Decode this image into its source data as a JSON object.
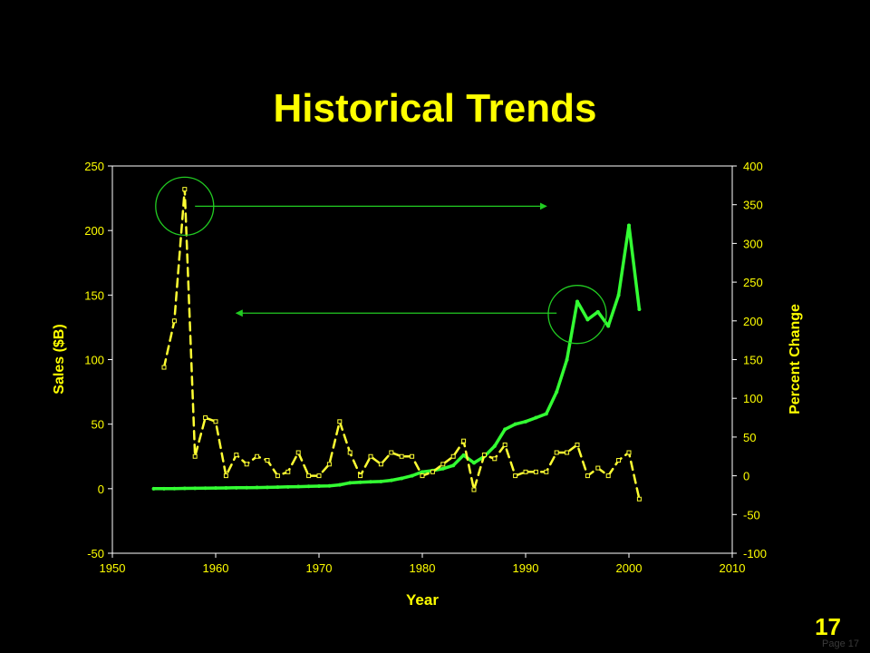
{
  "slide": {
    "title": "Historical Trends",
    "page_number": "17",
    "footer": "Page 17"
  },
  "colors": {
    "background": "#000000",
    "text": "#ffff00",
    "sales_line": "#33ff33",
    "percent_line": "#ffff33",
    "annotation": "#22cc22"
  },
  "chart_data": {
    "type": "line",
    "title": "",
    "xlabel": "Year",
    "ylabel": "Sales ($B)",
    "y2label": "Percent Change",
    "xlim": [
      1950,
      2010
    ],
    "ylim": [
      -50,
      250
    ],
    "y2lim": [
      -100,
      400
    ],
    "x_ticks": [
      "1950",
      "1960",
      "1970",
      "1980",
      "1990",
      "2000",
      "2010"
    ],
    "y_ticks": [
      "-50",
      "0",
      "50",
      "100",
      "150",
      "200",
      "250"
    ],
    "y2_ticks": [
      "-100",
      "-50",
      "0",
      "50",
      "100",
      "150",
      "200",
      "250",
      "300",
      "350",
      "400"
    ],
    "grid": false,
    "series": [
      {
        "axis": "left",
        "style": "solid",
        "x": [
          1954,
          1955,
          1956,
          1957,
          1958,
          1959,
          1960,
          1961,
          1962,
          1963,
          1964,
          1965,
          1966,
          1967,
          1968,
          1969,
          1970,
          1971,
          1972,
          1973,
          1974,
          1975,
          1976,
          1977,
          1978,
          1979,
          1980,
          1981,
          1982,
          1983,
          1984,
          1985,
          1986,
          1987,
          1988,
          1989,
          1990,
          1991,
          1992,
          1993,
          1994,
          1995,
          1996,
          1997,
          1998,
          1999,
          2000,
          2001
        ],
        "values": [
          0.0,
          0.0,
          0.1,
          0.2,
          0.3,
          0.4,
          0.5,
          0.6,
          0.7,
          0.8,
          0.9,
          1.0,
          1.2,
          1.4,
          1.6,
          1.8,
          2.0,
          2.2,
          3.0,
          4.5,
          5.0,
          5.3,
          5.6,
          6.5,
          8.0,
          10.0,
          13.0,
          14.0,
          15.5,
          18.0,
          26.0,
          20.0,
          25.0,
          33.0,
          46.0,
          50.0,
          52.0,
          55.0,
          58.0,
          75.0,
          100.0,
          145.0,
          131.0,
          137.0,
          126.0,
          150.0,
          204.0,
          139.0
        ]
      },
      {
        "axis": "right",
        "style": "dashed",
        "x": [
          1955,
          1956,
          1957,
          1958,
          1959,
          1960,
          1961,
          1962,
          1963,
          1964,
          1965,
          1966,
          1967,
          1968,
          1969,
          1970,
          1971,
          1972,
          1973,
          1974,
          1975,
          1976,
          1977,
          1978,
          1979,
          1980,
          1981,
          1982,
          1983,
          1984,
          1985,
          1986,
          1987,
          1988,
          1989,
          1990,
          1991,
          1992,
          1993,
          1994,
          1995,
          1996,
          1997,
          1998,
          1999,
          2000,
          2001
        ],
        "values": [
          140,
          200,
          370,
          25,
          75,
          70,
          0,
          27,
          15,
          25,
          20,
          0,
          5,
          30,
          0,
          0,
          15,
          70,
          30,
          0,
          25,
          15,
          30,
          25,
          25,
          0,
          5,
          15,
          25,
          45,
          -18,
          27,
          22,
          40,
          0,
          5,
          5,
          5,
          30,
          30,
          40,
          0,
          10,
          0,
          20,
          30,
          -30
        ]
      }
    ],
    "annotations": [
      {
        "type": "circle",
        "axis": "right",
        "x": 1957,
        "y": 348
      },
      {
        "type": "arrow",
        "axis": "right",
        "x1": 1958,
        "y1": 348,
        "x2": 1992,
        "y2": 348
      },
      {
        "type": "circle",
        "axis": "left",
        "x": 1995,
        "y": 135
      },
      {
        "type": "arrow",
        "axis": "left",
        "x1": 1993,
        "y1": 136,
        "x2": 1962,
        "y2": 136
      }
    ]
  }
}
